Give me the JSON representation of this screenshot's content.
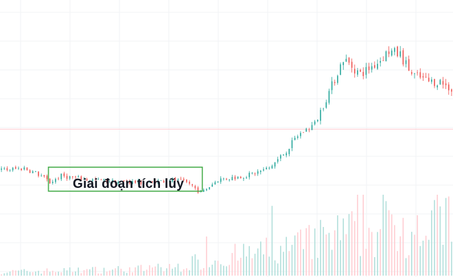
{
  "chart_data": {
    "type": "candlestick",
    "title": "",
    "xlabel": "",
    "ylabel": "",
    "grid": true,
    "legend": "none",
    "annotation": {
      "label": "Giai đoạn tích lũy",
      "kind": "box",
      "x_range": [
        17,
        70
      ]
    },
    "reference_line": {
      "value": 51.3
    },
    "colors": {
      "up": "#26a69a",
      "down": "#ef5350",
      "box": "#4caf50",
      "ref_line": "#ffcdd2",
      "grid": "#f2f3f5",
      "vol_up": "#b2dfdb",
      "vol_down": "#ffcdd2"
    },
    "close_anchors": [
      [
        0,
        30
      ],
      [
        8,
        31
      ],
      [
        14,
        27
      ],
      [
        17,
        23.5
      ],
      [
        21,
        27
      ],
      [
        30,
        25
      ],
      [
        40,
        24
      ],
      [
        52,
        23.5
      ],
      [
        60,
        25
      ],
      [
        66,
        23
      ],
      [
        70,
        18
      ],
      [
        76,
        25
      ],
      [
        86,
        27
      ],
      [
        94,
        31
      ],
      [
        100,
        40
      ],
      [
        104,
        48
      ],
      [
        110,
        54
      ],
      [
        116,
        74
      ],
      [
        120,
        88
      ],
      [
        126,
        80
      ],
      [
        132,
        86
      ],
      [
        136,
        92
      ],
      [
        140,
        90
      ],
      [
        144,
        80
      ],
      [
        150,
        76
      ],
      [
        154,
        76
      ],
      [
        158,
        72
      ]
    ],
    "volume_anchors": [
      [
        0,
        2
      ],
      [
        30,
        3
      ],
      [
        60,
        4
      ],
      [
        70,
        8
      ],
      [
        100,
        14
      ],
      [
        120,
        22
      ],
      [
        140,
        26
      ],
      [
        158,
        30
      ]
    ],
    "y_range": [
      0,
      100
    ]
  }
}
